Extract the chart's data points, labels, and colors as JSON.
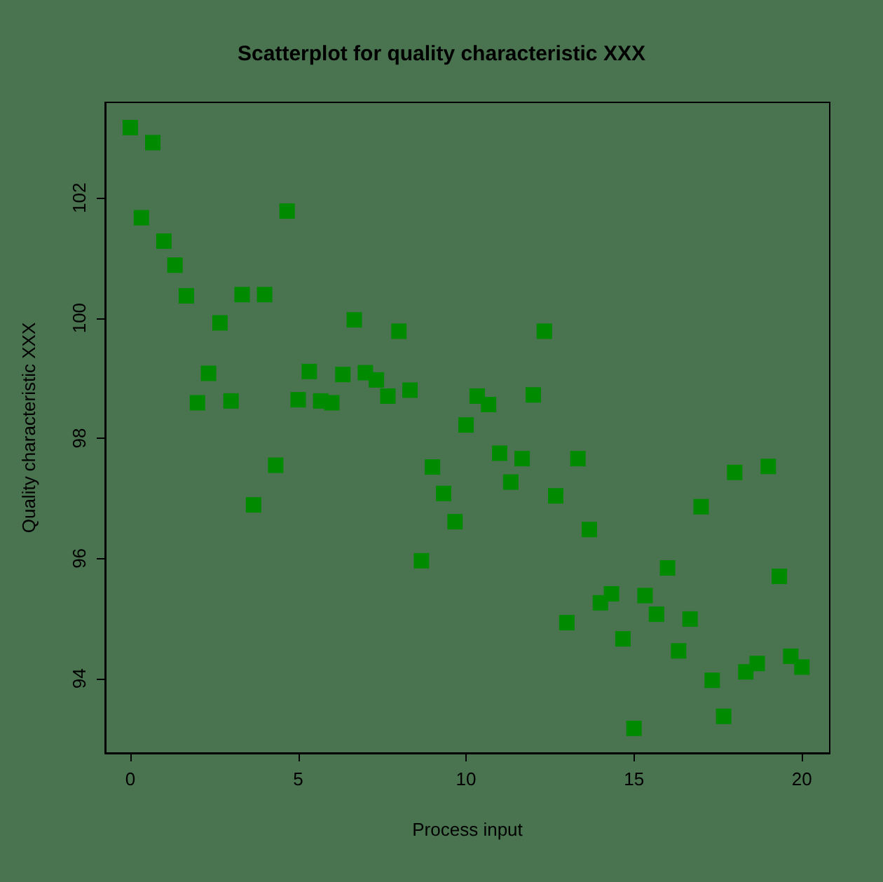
{
  "chart_data": {
    "type": "scatter",
    "title": "Scatterplot for quality characteristic XXX",
    "xlabel": "Process input",
    "ylabel": "Quality characteristic XXX",
    "marker": "square",
    "x": [
      0,
      0.33,
      0.67,
      1,
      1.33,
      1.67,
      2,
      2.33,
      2.67,
      3,
      3.33,
      3.67,
      4,
      4.33,
      4.67,
      5,
      5.33,
      5.67,
      6,
      6.33,
      6.67,
      7,
      7.33,
      7.67,
      8,
      8.33,
      8.67,
      9,
      9.33,
      9.67,
      10,
      10.33,
      10.67,
      11,
      11.33,
      11.67,
      12,
      12.33,
      12.67,
      13,
      13.33,
      13.67,
      14,
      14.33,
      14.67,
      15,
      15.33,
      15.67,
      16,
      16.33,
      16.67,
      17,
      17.33,
      17.67,
      18,
      18.33,
      18.67,
      19,
      19.33,
      19.67,
      20
    ],
    "series": [
      {
        "color": "#008a00",
        "values": [
          103.17,
          101.67,
          102.92,
          101.28,
          100.88,
          100.37,
          98.59,
          99.08,
          99.92,
          98.62,
          100.39,
          96.89,
          100.39,
          97.55,
          101.78,
          98.64,
          99.11,
          98.62,
          98.59,
          99.06,
          99.97,
          99.09,
          98.97,
          98.7,
          99.78,
          98.8,
          95.96,
          97.52,
          97.08,
          96.61,
          98.22,
          98.7,
          98.56,
          97.75,
          97.27,
          97.66,
          98.72,
          99.78,
          97.04,
          94.93,
          97.66,
          96.48,
          95.26,
          95.41,
          94.66,
          93.17,
          95.38,
          95.07,
          95.84,
          94.46,
          94.99,
          96.86,
          93.97,
          93.37,
          97.43,
          94.11,
          94.25,
          97.53,
          95.7,
          94.37,
          94.19
        ]
      }
    ],
    "xlim": [
      -0.75,
      20.83
    ],
    "ylim": [
      92.76,
      103.59
    ],
    "xticks": [
      0,
      5,
      10,
      15,
      20
    ],
    "yticks": [
      94,
      96,
      98,
      100,
      102
    ]
  }
}
